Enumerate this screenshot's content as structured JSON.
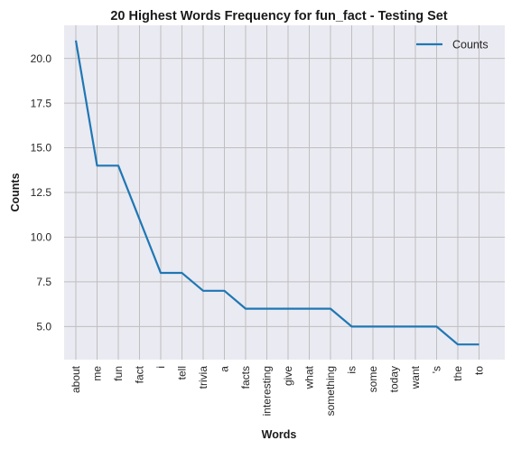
{
  "chart_data": {
    "type": "line",
    "title": "20 Highest Words Frequency for fun_fact - Testing Set",
    "xlabel": "Words",
    "ylabel": "Counts",
    "categories": [
      "about",
      "me",
      "fun",
      "fact",
      "i",
      "tell",
      "trivia",
      "a",
      "facts",
      "interesting",
      "give",
      "what",
      "something",
      "is",
      "some",
      "today",
      "want",
      "'s",
      "the",
      "to"
    ],
    "series": [
      {
        "name": "Counts",
        "values": [
          21,
          14,
          14,
          11,
          8,
          8,
          7,
          7,
          6,
          6,
          6,
          6,
          6,
          5,
          5,
          5,
          5,
          5,
          4,
          4
        ],
        "color": "#1f77b4"
      }
    ],
    "yticks": [
      "5.0",
      "7.5",
      "10.0",
      "12.5",
      "15.0",
      "17.5",
      "20.0"
    ],
    "ylim": [
      3.15,
      21.85
    ],
    "grid": true,
    "legend": "top-right",
    "background": "#eaeaf2",
    "gridColor": "#bfbfbf"
  }
}
